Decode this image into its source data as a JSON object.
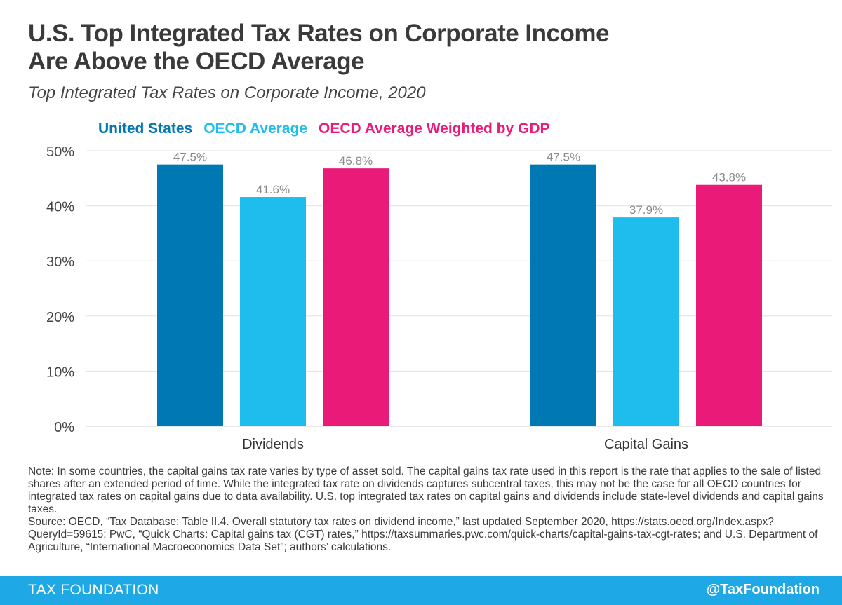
{
  "title_line1": "U.S. Top Integrated Tax Rates on Corporate Income",
  "title_line2": "Are Above the OECD Average",
  "subtitle": "Top Integrated Tax Rates on Corporate Income, 2020",
  "colors": {
    "united_states": "#0078b4",
    "oecd_average": "#1fbcee",
    "oecd_weighted": "#ea1a78",
    "footer": "#1fa8e6"
  },
  "chart_data": {
    "type": "bar",
    "categories": [
      "Dividends",
      "Capital Gains"
    ],
    "series": [
      {
        "name": "United States",
        "values": [
          47.5,
          47.5
        ],
        "labels": [
          "47.5%",
          "47.5%"
        ],
        "color": "#0078b4"
      },
      {
        "name": "OECD Average",
        "values": [
          41.6,
          37.9
        ],
        "labels": [
          "41.6%",
          "37.9%"
        ],
        "color": "#1fbcee"
      },
      {
        "name": "OECD Average Weighted by GDP",
        "values": [
          46.8,
          43.8
        ],
        "labels": [
          "46.8%",
          "43.8%"
        ],
        "color": "#ea1a78"
      }
    ],
    "yticks": [
      "0%",
      "10%",
      "20%",
      "30%",
      "40%",
      "50%"
    ],
    "ylim": [
      0,
      50
    ],
    "grid": true,
    "legend": "top-left"
  },
  "note": "Note: In some countries, the capital gains tax rate varies by type of asset sold. The capital gains tax rate used in this report is the rate that applies to the sale of listed shares after an extended period of time. While the integrated tax rate on dividends captures subcentral taxes, this may not be the case for all OECD countries for integrated tax rates on capital gains due to data availability. U.S. top integrated tax rates on capital gains and dividends include state-level dividends and capital gains taxes.",
  "source": "Source: OECD, “Tax Database: Table II.4. Overall statutory tax rates on dividend income,” last updated September 2020, https://stats.oecd.org/Index.aspx?QueryId=59615; PwC, “Quick Charts: Capital gains tax (CGT) rates,” https://taxsummaries.pwc.com/quick-charts/capital-gains-tax-cgt-rates; and U.S. Department of Agriculture, “International Macroeconomics Data Set”; authors’ calculations.",
  "footer": {
    "brand": "TAX FOUNDATION",
    "handle": "@TaxFoundation"
  }
}
